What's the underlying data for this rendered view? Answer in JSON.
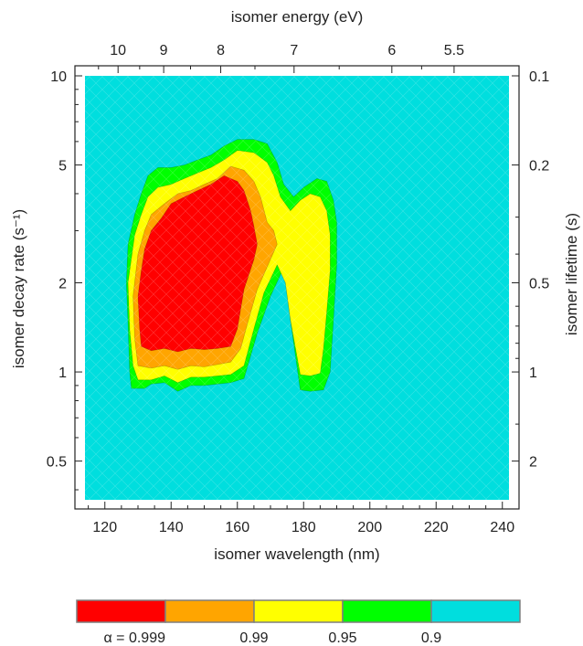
{
  "chart_data": {
    "type": "heatmap",
    "title": "",
    "xlabel": "isomer wavelength (nm)",
    "ylabel": "isomer decay rate (s⁻¹)",
    "x2label": "isomer energy (eV)",
    "y2label": "isomer lifetime (s)",
    "xlim": [
      114,
      242
    ],
    "ylim": [
      0.37,
      10
    ],
    "yscale": "log",
    "x_ticks": [
      120,
      140,
      160,
      180,
      200,
      220,
      240
    ],
    "y_ticks": [
      0.5,
      1,
      2,
      5,
      10
    ],
    "x2_ticks": [
      10,
      9,
      8,
      7,
      6,
      5.5
    ],
    "y2_ticks": [
      0.1,
      0.2,
      0.5,
      1,
      2
    ],
    "background_color": "#00dede",
    "levels": [
      {
        "label": "α = 0.999",
        "color": "#ff0000"
      },
      {
        "label": "0.99",
        "color": "#ffa500"
      },
      {
        "label": "0.95",
        "color": "#ffff00"
      },
      {
        "label": "0.9",
        "color": "#00ff00"
      },
      {
        "label": "",
        "color": "#00dede"
      }
    ],
    "contours": [
      {
        "level": "0.9",
        "color": "#00ff00",
        "points": [
          [
            126.5,
            2.0
          ],
          [
            127,
            1.45
          ],
          [
            127.5,
            1.0
          ],
          [
            128,
            0.88
          ],
          [
            132,
            0.88
          ],
          [
            134,
            0.91
          ],
          [
            138,
            0.92
          ],
          [
            142,
            0.86
          ],
          [
            146,
            0.9
          ],
          [
            150,
            0.9
          ],
          [
            154,
            0.91
          ],
          [
            158,
            0.92
          ],
          [
            162,
            0.95
          ],
          [
            166,
            1.35
          ],
          [
            170,
            1.8
          ],
          [
            174,
            2.25
          ],
          [
            176,
            1.5
          ],
          [
            179,
            0.87
          ],
          [
            182,
            0.86
          ],
          [
            186,
            0.87
          ],
          [
            188,
            1.0
          ],
          [
            189,
            1.5
          ],
          [
            190,
            2.3
          ],
          [
            190,
            3.2
          ],
          [
            189,
            3.8
          ],
          [
            187,
            4.4
          ],
          [
            184,
            4.5
          ],
          [
            180,
            4.2
          ],
          [
            177,
            3.9
          ],
          [
            174,
            4.3
          ],
          [
            172,
            5.1
          ],
          [
            169,
            5.9
          ],
          [
            165,
            6.1
          ],
          [
            160,
            6.1
          ],
          [
            156,
            5.8
          ],
          [
            152,
            5.4
          ],
          [
            148,
            5.2
          ],
          [
            144,
            5.0
          ],
          [
            140,
            4.9
          ],
          [
            136,
            4.9
          ],
          [
            133,
            4.6
          ],
          [
            131,
            4.0
          ],
          [
            129,
            3.4
          ],
          [
            127,
            2.7
          ]
        ]
      },
      {
        "level": "0.95",
        "color": "#ffff00",
        "points": [
          [
            127,
            2.0
          ],
          [
            127.5,
            1.4
          ],
          [
            128.5,
            1.05
          ],
          [
            130,
            0.94
          ],
          [
            134,
            0.94
          ],
          [
            138,
            0.97
          ],
          [
            142,
            0.92
          ],
          [
            146,
            0.96
          ],
          [
            150,
            0.96
          ],
          [
            154,
            0.97
          ],
          [
            158,
            0.98
          ],
          [
            162,
            1.05
          ],
          [
            165,
            1.4
          ],
          [
            168,
            1.85
          ],
          [
            172,
            2.3
          ],
          [
            174.5,
            2.0
          ],
          [
            176,
            1.5
          ],
          [
            179,
            0.98
          ],
          [
            182,
            0.97
          ],
          [
            185,
            0.99
          ],
          [
            186,
            1.2
          ],
          [
            187,
            1.6
          ],
          [
            188,
            2.2
          ],
          [
            188,
            2.9
          ],
          [
            187,
            3.5
          ],
          [
            185,
            3.9
          ],
          [
            182,
            4.0
          ],
          [
            179,
            3.8
          ],
          [
            176,
            3.5
          ],
          [
            173,
            3.9
          ],
          [
            171,
            4.6
          ],
          [
            169,
            5.1
          ],
          [
            165,
            5.5
          ],
          [
            160,
            5.6
          ],
          [
            156,
            5.2
          ],
          [
            152,
            4.9
          ],
          [
            148,
            4.7
          ],
          [
            144,
            4.5
          ],
          [
            140,
            4.3
          ],
          [
            136,
            4.2
          ],
          [
            133,
            3.9
          ],
          [
            131,
            3.4
          ],
          [
            129,
            2.9
          ]
        ]
      },
      {
        "level": "0.99",
        "color": "#ffa500",
        "points": [
          [
            128.5,
            1.8
          ],
          [
            129,
            1.3
          ],
          [
            130,
            1.05
          ],
          [
            134,
            1.03
          ],
          [
            138,
            1.05
          ],
          [
            142,
            1.02
          ],
          [
            146,
            1.05
          ],
          [
            150,
            1.04
          ],
          [
            154,
            1.06
          ],
          [
            158,
            1.08
          ],
          [
            161,
            1.2
          ],
          [
            163,
            1.45
          ],
          [
            166,
            1.9
          ],
          [
            170,
            2.4
          ],
          [
            172,
            2.7
          ],
          [
            171,
            3.0
          ],
          [
            169,
            3.2
          ],
          [
            167,
            3.9
          ],
          [
            165,
            4.4
          ],
          [
            162,
            4.8
          ],
          [
            158,
            4.95
          ],
          [
            154,
            4.5
          ],
          [
            150,
            4.3
          ],
          [
            146,
            4.1
          ],
          [
            142,
            4.0
          ],
          [
            138,
            3.7
          ],
          [
            134,
            3.4
          ],
          [
            132,
            3.0
          ],
          [
            130,
            2.5
          ]
        ]
      },
      {
        "level": "0.999",
        "color": "#ff0000",
        "points": [
          [
            130,
            1.8
          ],
          [
            130.5,
            1.4
          ],
          [
            131,
            1.22
          ],
          [
            134,
            1.18
          ],
          [
            138,
            1.2
          ],
          [
            142,
            1.17
          ],
          [
            146,
            1.2
          ],
          [
            150,
            1.19
          ],
          [
            154,
            1.2
          ],
          [
            158,
            1.22
          ],
          [
            160,
            1.4
          ],
          [
            162,
            1.9
          ],
          [
            165,
            2.4
          ],
          [
            166,
            2.7
          ],
          [
            165,
            3.1
          ],
          [
            164,
            3.5
          ],
          [
            162,
            4.1
          ],
          [
            160,
            4.4
          ],
          [
            156,
            4.6
          ],
          [
            152,
            4.3
          ],
          [
            148,
            4.1
          ],
          [
            144,
            3.9
          ],
          [
            140,
            3.7
          ],
          [
            137,
            3.3
          ],
          [
            134,
            3.0
          ],
          [
            132,
            2.6
          ],
          [
            131,
            2.2
          ]
        ]
      }
    ]
  }
}
